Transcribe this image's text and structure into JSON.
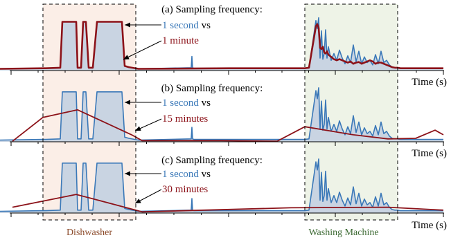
{
  "chart_data": [
    {
      "type": "line",
      "title_prefix": "(a) Sampling frequency:",
      "legend": {
        "blue_label": "1 second",
        "vs_label": "vs",
        "red_label": "1 minute"
      },
      "xlabel": "Time (s)",
      "ylim": [
        0,
        1
      ],
      "x_range": [
        0,
        651
      ],
      "series": [
        {
          "name": "1 second",
          "color": "#3a78b8",
          "fill": "#c9d4e2",
          "x": [
            0,
            62,
            66,
            87,
            90,
            92,
            110,
            112,
            117,
            120,
            124,
            128,
            134,
            140,
            142,
            158,
            176,
            180,
            186,
            200,
            276,
            277,
            278,
            280,
            330,
            440,
            446,
            456,
            458,
            460,
            462,
            464,
            466,
            468,
            470,
            472,
            474,
            478,
            482,
            486,
            490,
            494,
            498,
            502,
            506,
            510,
            514,
            518,
            522,
            526,
            530,
            534,
            538,
            542,
            546,
            550,
            554,
            558,
            562,
            566,
            570,
            574,
            578,
            640
          ],
          "y": [
            0.03,
            0.04,
            0.04,
            0.05,
            0.86,
            0.86,
            0.86,
            0.05,
            0.05,
            0.86,
            0.86,
            0.05,
            0.05,
            0.86,
            0.86,
            0.86,
            0.86,
            0.08,
            0.06,
            0.03,
            0.05,
            0.25,
            0.05,
            0.04,
            0.04,
            0.04,
            0.05,
            0.88,
            0.74,
            0.93,
            0.22,
            0.7,
            0.2,
            0.3,
            0.72,
            0.22,
            0.42,
            0.18,
            0.3,
            0.18,
            0.36,
            0.22,
            0.12,
            0.26,
            0.14,
            0.45,
            0.16,
            0.34,
            0.12,
            0.24,
            0.14,
            0.18,
            0.1,
            0.28,
            0.12,
            0.34,
            0.14,
            0.18,
            0.1,
            0.06,
            0.05,
            0.05,
            0.04,
            0.04
          ]
        },
        {
          "name": "1 minute",
          "color": "#8c1219",
          "x": [
            0,
            62,
            66,
            87,
            90,
            92,
            110,
            112,
            117,
            120,
            124,
            128,
            134,
            140,
            142,
            158,
            176,
            180,
            186,
            200,
            330,
            440,
            446,
            456,
            458,
            460,
            462,
            464,
            466,
            468,
            470,
            472,
            474,
            478,
            482,
            486,
            490,
            494,
            498,
            502,
            506,
            510,
            514,
            518,
            522,
            526,
            530,
            534,
            538,
            542,
            546,
            550,
            554,
            558,
            562,
            566,
            570,
            574,
            578,
            640
          ],
          "y": [
            0.03,
            0.04,
            0.04,
            0.05,
            0.86,
            0.86,
            0.86,
            0.05,
            0.05,
            0.86,
            0.86,
            0.05,
            0.05,
            0.86,
            0.86,
            0.86,
            0.86,
            0.08,
            0.06,
            0.03,
            0.04,
            0.04,
            0.05,
            0.78,
            0.82,
            0.75,
            0.4,
            0.38,
            0.42,
            0.32,
            0.3,
            0.34,
            0.28,
            0.24,
            0.2,
            0.18,
            0.2,
            0.18,
            0.16,
            0.14,
            0.16,
            0.12,
            0.14,
            0.15,
            0.12,
            0.14,
            0.16,
            0.18,
            0.16,
            0.12,
            0.14,
            0.14,
            0.12,
            0.1,
            0.08,
            0.06,
            0.05,
            0.05,
            0.04,
            0.04
          ]
        }
      ]
    },
    {
      "type": "line",
      "title_prefix": "(b) Sampling frequency:",
      "legend": {
        "blue_label": "1 second",
        "vs_label": "vs",
        "red_label": "15 minutes"
      },
      "xlabel": "Time (s)",
      "ylim": [
        0,
        1
      ],
      "x_range": [
        0,
        651
      ],
      "series": [
        {
          "name": "1 second",
          "color": "#3a78b8",
          "fill": "#c9d4e2",
          "x": [
            0,
            62,
            66,
            87,
            90,
            92,
            110,
            112,
            117,
            120,
            124,
            128,
            134,
            140,
            142,
            158,
            176,
            180,
            186,
            200,
            276,
            277,
            278,
            280,
            330,
            440,
            446,
            456,
            458,
            460,
            462,
            464,
            466,
            468,
            470,
            472,
            474,
            478,
            482,
            486,
            490,
            494,
            498,
            502,
            506,
            510,
            514,
            518,
            522,
            526,
            530,
            534,
            538,
            542,
            546,
            550,
            554,
            558,
            562,
            566,
            570,
            574,
            578,
            640
          ],
          "y": [
            0.03,
            0.04,
            0.04,
            0.05,
            0.86,
            0.86,
            0.86,
            0.05,
            0.05,
            0.86,
            0.86,
            0.05,
            0.05,
            0.86,
            0.86,
            0.86,
            0.86,
            0.08,
            0.06,
            0.03,
            0.05,
            0.25,
            0.05,
            0.04,
            0.04,
            0.04,
            0.05,
            0.88,
            0.74,
            0.93,
            0.22,
            0.7,
            0.2,
            0.3,
            0.72,
            0.22,
            0.42,
            0.18,
            0.3,
            0.18,
            0.36,
            0.22,
            0.12,
            0.26,
            0.14,
            0.45,
            0.16,
            0.34,
            0.12,
            0.24,
            0.14,
            0.18,
            0.1,
            0.28,
            0.12,
            0.34,
            0.14,
            0.18,
            0.1,
            0.06,
            0.05,
            0.05,
            0.04,
            0.04
          ]
        },
        {
          "name": "15 minutes",
          "color": "#8c1219",
          "x": [
            18,
            62,
            112,
            190,
            205,
            320,
            400,
            440,
            510,
            560,
            600,
            628,
            640
          ],
          "y": [
            0.01,
            0.42,
            0.55,
            0.12,
            0.02,
            0.02,
            0.01,
            0.26,
            0.12,
            0.05,
            0.06,
            0.2,
            0.12
          ]
        }
      ]
    },
    {
      "type": "line",
      "title_prefix": "(c) Sampling frequency:",
      "legend": {
        "blue_label": "1 second",
        "vs_label": "vs",
        "red_label": "30 minutes"
      },
      "xlabel": "Time (s)",
      "ylim": [
        0,
        1
      ],
      "x_range": [
        0,
        651
      ],
      "series": [
        {
          "name": "1 second",
          "color": "#3a78b8",
          "fill": "#c9d4e2",
          "x": [
            0,
            62,
            66,
            87,
            90,
            92,
            110,
            112,
            117,
            120,
            124,
            128,
            134,
            140,
            142,
            158,
            176,
            180,
            186,
            200,
            276,
            277,
            278,
            280,
            330,
            440,
            446,
            456,
            458,
            460,
            462,
            464,
            466,
            468,
            470,
            472,
            474,
            478,
            482,
            486,
            490,
            494,
            498,
            502,
            506,
            510,
            514,
            518,
            522,
            526,
            530,
            534,
            538,
            542,
            546,
            550,
            554,
            558,
            562,
            566,
            570,
            574,
            578,
            640
          ],
          "y": [
            0.03,
            0.04,
            0.04,
            0.05,
            0.86,
            0.86,
            0.86,
            0.05,
            0.05,
            0.86,
            0.86,
            0.05,
            0.05,
            0.86,
            0.86,
            0.86,
            0.86,
            0.08,
            0.06,
            0.03,
            0.05,
            0.25,
            0.05,
            0.04,
            0.04,
            0.04,
            0.05,
            0.88,
            0.74,
            0.93,
            0.22,
            0.7,
            0.2,
            0.3,
            0.72,
            0.22,
            0.42,
            0.18,
            0.3,
            0.18,
            0.36,
            0.22,
            0.12,
            0.26,
            0.14,
            0.45,
            0.16,
            0.34,
            0.12,
            0.24,
            0.14,
            0.18,
            0.1,
            0.28,
            0.12,
            0.34,
            0.14,
            0.18,
            0.1,
            0.06,
            0.05,
            0.05,
            0.04,
            0.04
          ]
        },
        {
          "name": "30 minutes",
          "color": "#8c1219",
          "x": [
            18,
            110,
            205,
            420,
            560,
            640
          ],
          "y": [
            0.1,
            0.32,
            0.02,
            0.09,
            0.1,
            0.05
          ]
        }
      ]
    }
  ],
  "annotations": {
    "dishwasher_label": "Dishwasher",
    "washing_machine_label": "Washing Machine",
    "dishwasher_region": [
      62,
      196
    ],
    "washing_machine_region": [
      440,
      574
    ],
    "dishwasher_color": "#fbeee7",
    "washing_machine_color": "#eef3e7",
    "dishwasher_label_color": "#8b4a2a",
    "washing_machine_label_color": "#3d6a34"
  }
}
